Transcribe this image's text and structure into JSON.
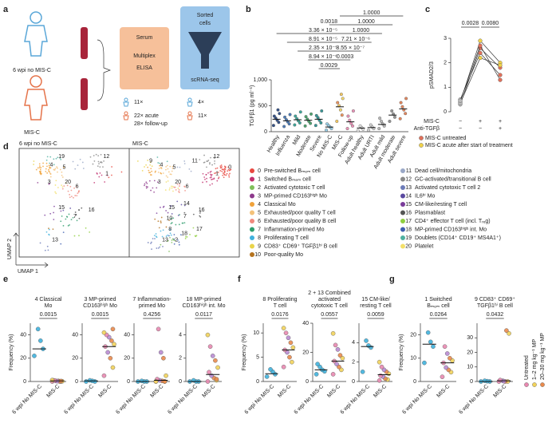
{
  "panel_labels": [
    "a",
    "b",
    "c",
    "d",
    "e",
    "f",
    "g"
  ],
  "diagram": {
    "group1": "6 wpi no MIS-C",
    "group2": "MIS-C",
    "assay1": [
      "Serum",
      "Multiplex",
      "ELISA"
    ],
    "assay2": [
      "Sorted",
      "cells",
      "scRNA-seq"
    ],
    "counts1": [
      "11×",
      "22× acute",
      "28× follow-up"
    ],
    "counts2": [
      "4×",
      "11×"
    ]
  },
  "umap": {
    "left_title": "6 wpi no MIS-C",
    "right_title": "MIS-C",
    "xlabel": "UMAP 1",
    "ylabel": "UMAP 2",
    "left_labels": [
      "19",
      "4",
      "20",
      "12",
      "6",
      "1",
      "15",
      "7",
      "5",
      "16",
      "3",
      "13"
    ],
    "right_labels": [
      "0",
      "12",
      "1",
      "5",
      "3",
      "20",
      "6",
      "4",
      "9",
      "11",
      "16",
      "15",
      "7",
      "10",
      "8",
      "14",
      "13",
      "18",
      "2",
      "17"
    ],
    "legend": [
      {
        "id": "0",
        "label": "Pre-switched Bₘₑₘ cell",
        "color": "#e8473f"
      },
      {
        "id": "1",
        "label": "Switched Bₘₑₘ cell",
        "color": "#c2306e"
      },
      {
        "id": "2",
        "label": "Activated cytotoxic T cell",
        "color": "#7fbf5a"
      },
      {
        "id": "3",
        "label": "MP-primed CD163ʰⁱᵍʰ Mo",
        "color": "#8e3a8c"
      },
      {
        "id": "4",
        "label": "Classical Mo",
        "color": "#f0a23a"
      },
      {
        "id": "5",
        "label": "Exhausted/poor quality T cell",
        "color": "#f4c27a"
      },
      {
        "id": "6",
        "label": "Exhausted/poor quality B cell",
        "color": "#f08a7e"
      },
      {
        "id": "7",
        "label": "Inflammation-primed Mo",
        "color": "#2f9e6d"
      },
      {
        "id": "8",
        "label": "Proliferating T cell",
        "color": "#3fb1dd"
      },
      {
        "id": "9",
        "label": "CD83⁺ CD69⁺ TGFβ1ʰⁱ B cell",
        "color": "#e9d44a"
      },
      {
        "id": "10",
        "label": "Poor-quality Mo",
        "color": "#b5731f"
      },
      {
        "id": "11",
        "label": "Dead cell/mitochondria",
        "color": "#9aa8c7"
      },
      {
        "id": "12",
        "label": "GC-activated/transitional B cell",
        "color": "#8a8a8a"
      },
      {
        "id": "13",
        "label": "Activated cytotoxic T cell 2",
        "color": "#6c7bb8"
      },
      {
        "id": "14",
        "label": "IL6ʰⁱ Mo",
        "color": "#5a4aa0"
      },
      {
        "id": "15",
        "label": "CM-like/resting T cell",
        "color": "#7a3c9a"
      },
      {
        "id": "16",
        "label": "Plasmablast",
        "color": "#555555"
      },
      {
        "id": "17",
        "label": "CD4⁺ effector T cell (incl. Tᵣₑg)",
        "color": "#8fcf3f"
      },
      {
        "id": "18",
        "label": "MP-primed CD163ʰⁱᵍʰ int. Mo",
        "color": "#3f5fb0"
      },
      {
        "id": "19",
        "label": "Doublets (CD14⁺ CD19⁺ MS4A1⁺)",
        "color": "#4fb0a0"
      },
      {
        "id": "20",
        "label": "Platelet",
        "color": "#f3e06a"
      }
    ]
  },
  "chart_data": [
    {
      "type": "strip",
      "ylabel": "TGFβ1 (pg ml⁻¹)",
      "categories": [
        "Healthy",
        "Influenza",
        "Mild",
        "Moderate",
        "Severe",
        "No MIS-C",
        "MIS-C",
        "Follow-up",
        "Adult healthy",
        "Adult URTI",
        "Adult mild",
        "Adult moderate",
        "Adult severe"
      ],
      "points": [
        [
          120,
          180,
          220,
          260,
          300,
          350,
          420
        ],
        [
          100,
          150,
          190,
          230,
          280,
          330
        ],
        [
          130,
          170,
          210,
          250,
          300,
          380
        ],
        [
          110,
          160,
          200,
          240,
          290,
          340
        ],
        [
          120,
          170,
          220,
          270,
          310,
          400
        ],
        [
          30,
          60,
          90,
          120,
          150
        ],
        [
          200,
          320,
          420,
          500,
          560,
          640,
          720
        ],
        [
          60,
          110,
          160,
          220,
          300,
          400
        ],
        [
          20,
          50,
          80,
          110
        ],
        [
          30,
          60,
          90,
          130
        ],
        [
          60,
          110,
          150,
          200,
          260
        ],
        [
          200,
          280,
          340,
          400
        ],
        [
          250,
          350,
          420,
          480,
          560,
          640
        ]
      ],
      "medians": [
        240,
        210,
        230,
        220,
        240,
        90,
        480,
        190,
        70,
        80,
        140,
        320,
        440
      ],
      "category_colors": [
        "#1f3f7a",
        "#3a6fb0",
        "#2a9d8f",
        "#3c9a5f",
        "#238b8b",
        "#8ecae6",
        [
          "#f2c14e",
          "#e98a4c",
          "#f3d35b"
        ],
        "#e888b0",
        "#dddddd",
        "#cfcfcf",
        "#b0b0b0",
        "#8a8a8a",
        "#e07a4c"
      ],
      "ylim": [
        0,
        1000
      ],
      "yticks": [
        0,
        500,
        {
          "value": 1000,
          "label": "1,000"
        }
      ],
      "annotations": [
        "1.0000",
        "1.0000",
        "1.0000",
        "0.0018",
        "3.36 × 10⁻⁵",
        "7.21 × 10⁻⁶",
        "8.91 × 10⁻⁵",
        "8.55 × 10⁻⁷",
        "2.35 × 10⁻⁵",
        "0.0003",
        "8.94 × 10⁻⁶",
        "0.0029"
      ]
    },
    {
      "type": "paired",
      "ylabel": "pSMAD2/3",
      "ylim": [
        0,
        3
      ],
      "yticks": [
        0,
        1,
        2,
        3
      ],
      "lines": [
        [
          0.3,
          2.6,
          1.8
        ],
        [
          0.4,
          2.9,
          2.0
        ],
        [
          0.5,
          2.4,
          1.5
        ],
        [
          0.35,
          2.2,
          1.9
        ],
        [
          0.45,
          2.7,
          1.3
        ]
      ],
      "line_colors": [
        "#e0705a",
        "#f0d24a",
        "#e0705a",
        "#f0d24a",
        "#e0705a"
      ],
      "baseline_color": "#bbbbbb",
      "p": [
        "0.0028",
        "0.0080"
      ],
      "conditions": [
        {
          "label": "MIS-C",
          "signs": [
            "−",
            "+",
            "+"
          ]
        },
        {
          "label": "Anti-TGFβ",
          "signs": [
            "−",
            "−",
            "+"
          ]
        }
      ],
      "legend": [
        {
          "name": "MIS-C untreated",
          "color": "#e0705a"
        },
        {
          "name": "MIS-C acute after start of treatment",
          "color": "#f0d24a"
        }
      ]
    },
    {
      "type": "strip",
      "title": [
        "4 Classical",
        "Mo"
      ],
      "ylabel": "Frequency (%)",
      "p": "0.0015",
      "categories": [
        "6 wpi No MIS-C",
        "MIS-C"
      ],
      "points": [
        [
          22,
          28,
          35,
          45
        ],
        [
          0,
          0,
          0.5,
          0.5,
          1,
          0.2,
          0,
          0.3,
          0.8,
          1.2,
          0.4
        ]
      ],
      "medians": [
        28,
        0.5
      ],
      "category_colors": [
        "#3fb1dd",
        [
          "#e888b0",
          "#f2d35b",
          "#e98a4c",
          "#b98bd3"
        ]
      ],
      "ylim": [
        0,
        50
      ],
      "yticks": [
        0,
        20,
        40
      ]
    },
    {
      "type": "strip",
      "title": [
        "3 MP-primed",
        "CD163ʰⁱᵍʰ Mo"
      ],
      "p": "0.0015",
      "categories": [
        "6 wpi No MIS-C",
        "MIS-C"
      ],
      "points": [
        [
          0,
          0,
          0.5,
          1
        ],
        [
          5,
          12,
          20,
          25,
          30,
          32,
          35,
          38,
          40,
          42,
          45
        ]
      ],
      "medians": [
        0.5,
        30
      ],
      "category_colors": [
        "#3fb1dd",
        [
          "#e888b0",
          "#f2d35b",
          "#e98a4c",
          "#b98bd3"
        ]
      ],
      "ylim": [
        0,
        50
      ],
      "yticks": [
        0,
        20,
        40
      ]
    },
    {
      "type": "strip",
      "title": [
        "7 Inflammation-",
        "primed Mo"
      ],
      "p": "0.4256",
      "categories": [
        "6 wpi No MIS-C",
        "MIS-C"
      ],
      "points": [
        [
          0,
          0,
          0,
          0.5
        ],
        [
          0,
          0,
          0.5,
          1,
          2,
          5,
          20,
          25,
          45,
          0,
          0
        ]
      ],
      "medians": [
        0,
        1
      ],
      "category_colors": [
        "#3fb1dd",
        [
          "#e888b0",
          "#f2d35b",
          "#e98a4c",
          "#b98bd3"
        ]
      ],
      "ylim": [
        0,
        50
      ],
      "yticks": [
        0,
        20,
        40
      ]
    },
    {
      "type": "strip",
      "title": [
        "18 MP-primed",
        "CD163ʰⁱᵍʰ int. Mo"
      ],
      "p": "0.0117",
      "categories": [
        "6 wpi No MIS-C",
        "MIS-C"
      ],
      "points": [
        [
          0,
          0,
          0,
          0.1
        ],
        [
          0,
          0.1,
          0.3,
          0.5,
          0.8,
          1.2,
          1.8,
          2.2,
          3,
          4,
          0.2
        ]
      ],
      "medians": [
        0,
        0.6
      ],
      "category_colors": [
        "#3fb1dd",
        [
          "#e888b0",
          "#f2d35b",
          "#e98a4c",
          "#b98bd3"
        ]
      ],
      "ylim": [
        0,
        5
      ],
      "yticks": [
        0,
        2,
        4
      ]
    },
    {
      "type": "strip",
      "title": [
        "8 Proliferating",
        "T cell"
      ],
      "ylabel": "Frequency (%)",
      "p": "0.0176",
      "categories": [
        "6 wpi No MIS-C",
        "MIS-C"
      ],
      "points": [
        [
          1,
          1.5,
          2,
          2.5
        ],
        [
          3,
          4,
          5,
          6,
          6.5,
          7,
          8,
          9,
          10,
          11
        ]
      ],
      "medians": [
        1.6,
        6.5
      ],
      "category_colors": [
        "#3fb1dd",
        [
          "#e888b0",
          "#f2d35b",
          "#e98a4c",
          "#b98bd3"
        ]
      ],
      "ylim": [
        0,
        12
      ],
      "yticks": [
        0,
        5,
        10
      ]
    },
    {
      "type": "strip",
      "title": [
        "2 + 13 Combined",
        "activated",
        "cytotoxic T cell"
      ],
      "p": "0.0557",
      "categories": [
        "6 wpi No MIS-C",
        "MIS-C"
      ],
      "points": [
        [
          5,
          7,
          8,
          10,
          12
        ],
        [
          5,
          8,
          10,
          12,
          14,
          16,
          18,
          22,
          25,
          33
        ]
      ],
      "medians": [
        8,
        14
      ],
      "category_colors": [
        "#3fb1dd",
        [
          "#e888b0",
          "#f2d35b",
          "#e98a4c",
          "#b98bd3"
        ]
      ],
      "ylim": [
        0,
        40
      ],
      "yticks": [
        0,
        20,
        40
      ]
    },
    {
      "type": "strip",
      "title": [
        "15 CM-like/",
        "resting T cell"
      ],
      "p": "0.0059",
      "categories": [
        "6 wpi No MIS-C",
        "MIS-C"
      ],
      "points": [
        [
          1,
          3.5,
          3.7,
          4.2
        ],
        [
          0.1,
          0.2,
          0.3,
          0.5,
          0.6,
          0.8,
          1,
          1.2,
          1.5,
          2
        ]
      ],
      "medians": [
        3.6,
        0.7
      ],
      "category_colors": [
        "#3fb1dd",
        [
          "#e888b0",
          "#f2d35b",
          "#e98a4c",
          "#b98bd3"
        ]
      ],
      "ylim": [
        0,
        6
      ],
      "yticks": [
        0,
        2,
        4
      ]
    },
    {
      "type": "strip",
      "title": [
        "1 Switched",
        "Bₘₑₘ cell"
      ],
      "ylabel": "Frequency (%)",
      "p": "0.0264",
      "categories": [
        "6 wpi No MIS-C",
        "MIS-C"
      ],
      "points": [
        [
          8,
          15,
          17,
          21
        ],
        [
          2,
          4,
          5,
          6,
          8,
          9,
          10,
          12,
          15
        ]
      ],
      "medians": [
        16,
        8
      ],
      "category_colors": [
        "#3fb1dd",
        [
          "#e888b0",
          "#f2d35b",
          "#e98a4c",
          "#b98bd3"
        ]
      ],
      "ylim": [
        0,
        25
      ],
      "yticks": [
        0,
        10,
        20
      ]
    },
    {
      "type": "strip",
      "title": [
        "9 CD83⁺ CD69⁺",
        "TGFβ1ʰⁱ B cell"
      ],
      "p": "0.0432",
      "categories": [
        "6 wpi No MIS-C",
        "MIS-C"
      ],
      "points": [
        [
          0,
          0,
          0.2,
          0.5
        ],
        [
          0,
          0,
          0,
          0.5,
          1,
          33,
          35,
          0.2
        ]
      ],
      "medians": [
        0,
        0.5
      ],
      "category_colors": [
        "#3fb1dd",
        [
          "#e888b0",
          "#f2d35b",
          "#e98a4c",
          "#b98bd3"
        ]
      ],
      "ylim": [
        0,
        40
      ],
      "yticks": [
        0,
        10,
        20,
        30
      ],
      "legend": [
        {
          "name": "Untreated",
          "color": "#e888b0"
        },
        {
          "name": "1–2 mg kg⁻¹ MP",
          "color": "#f2d35b"
        },
        {
          "name": "20–30 mg kg⁻¹ MP",
          "color": "#e98a4c"
        }
      ]
    }
  ]
}
